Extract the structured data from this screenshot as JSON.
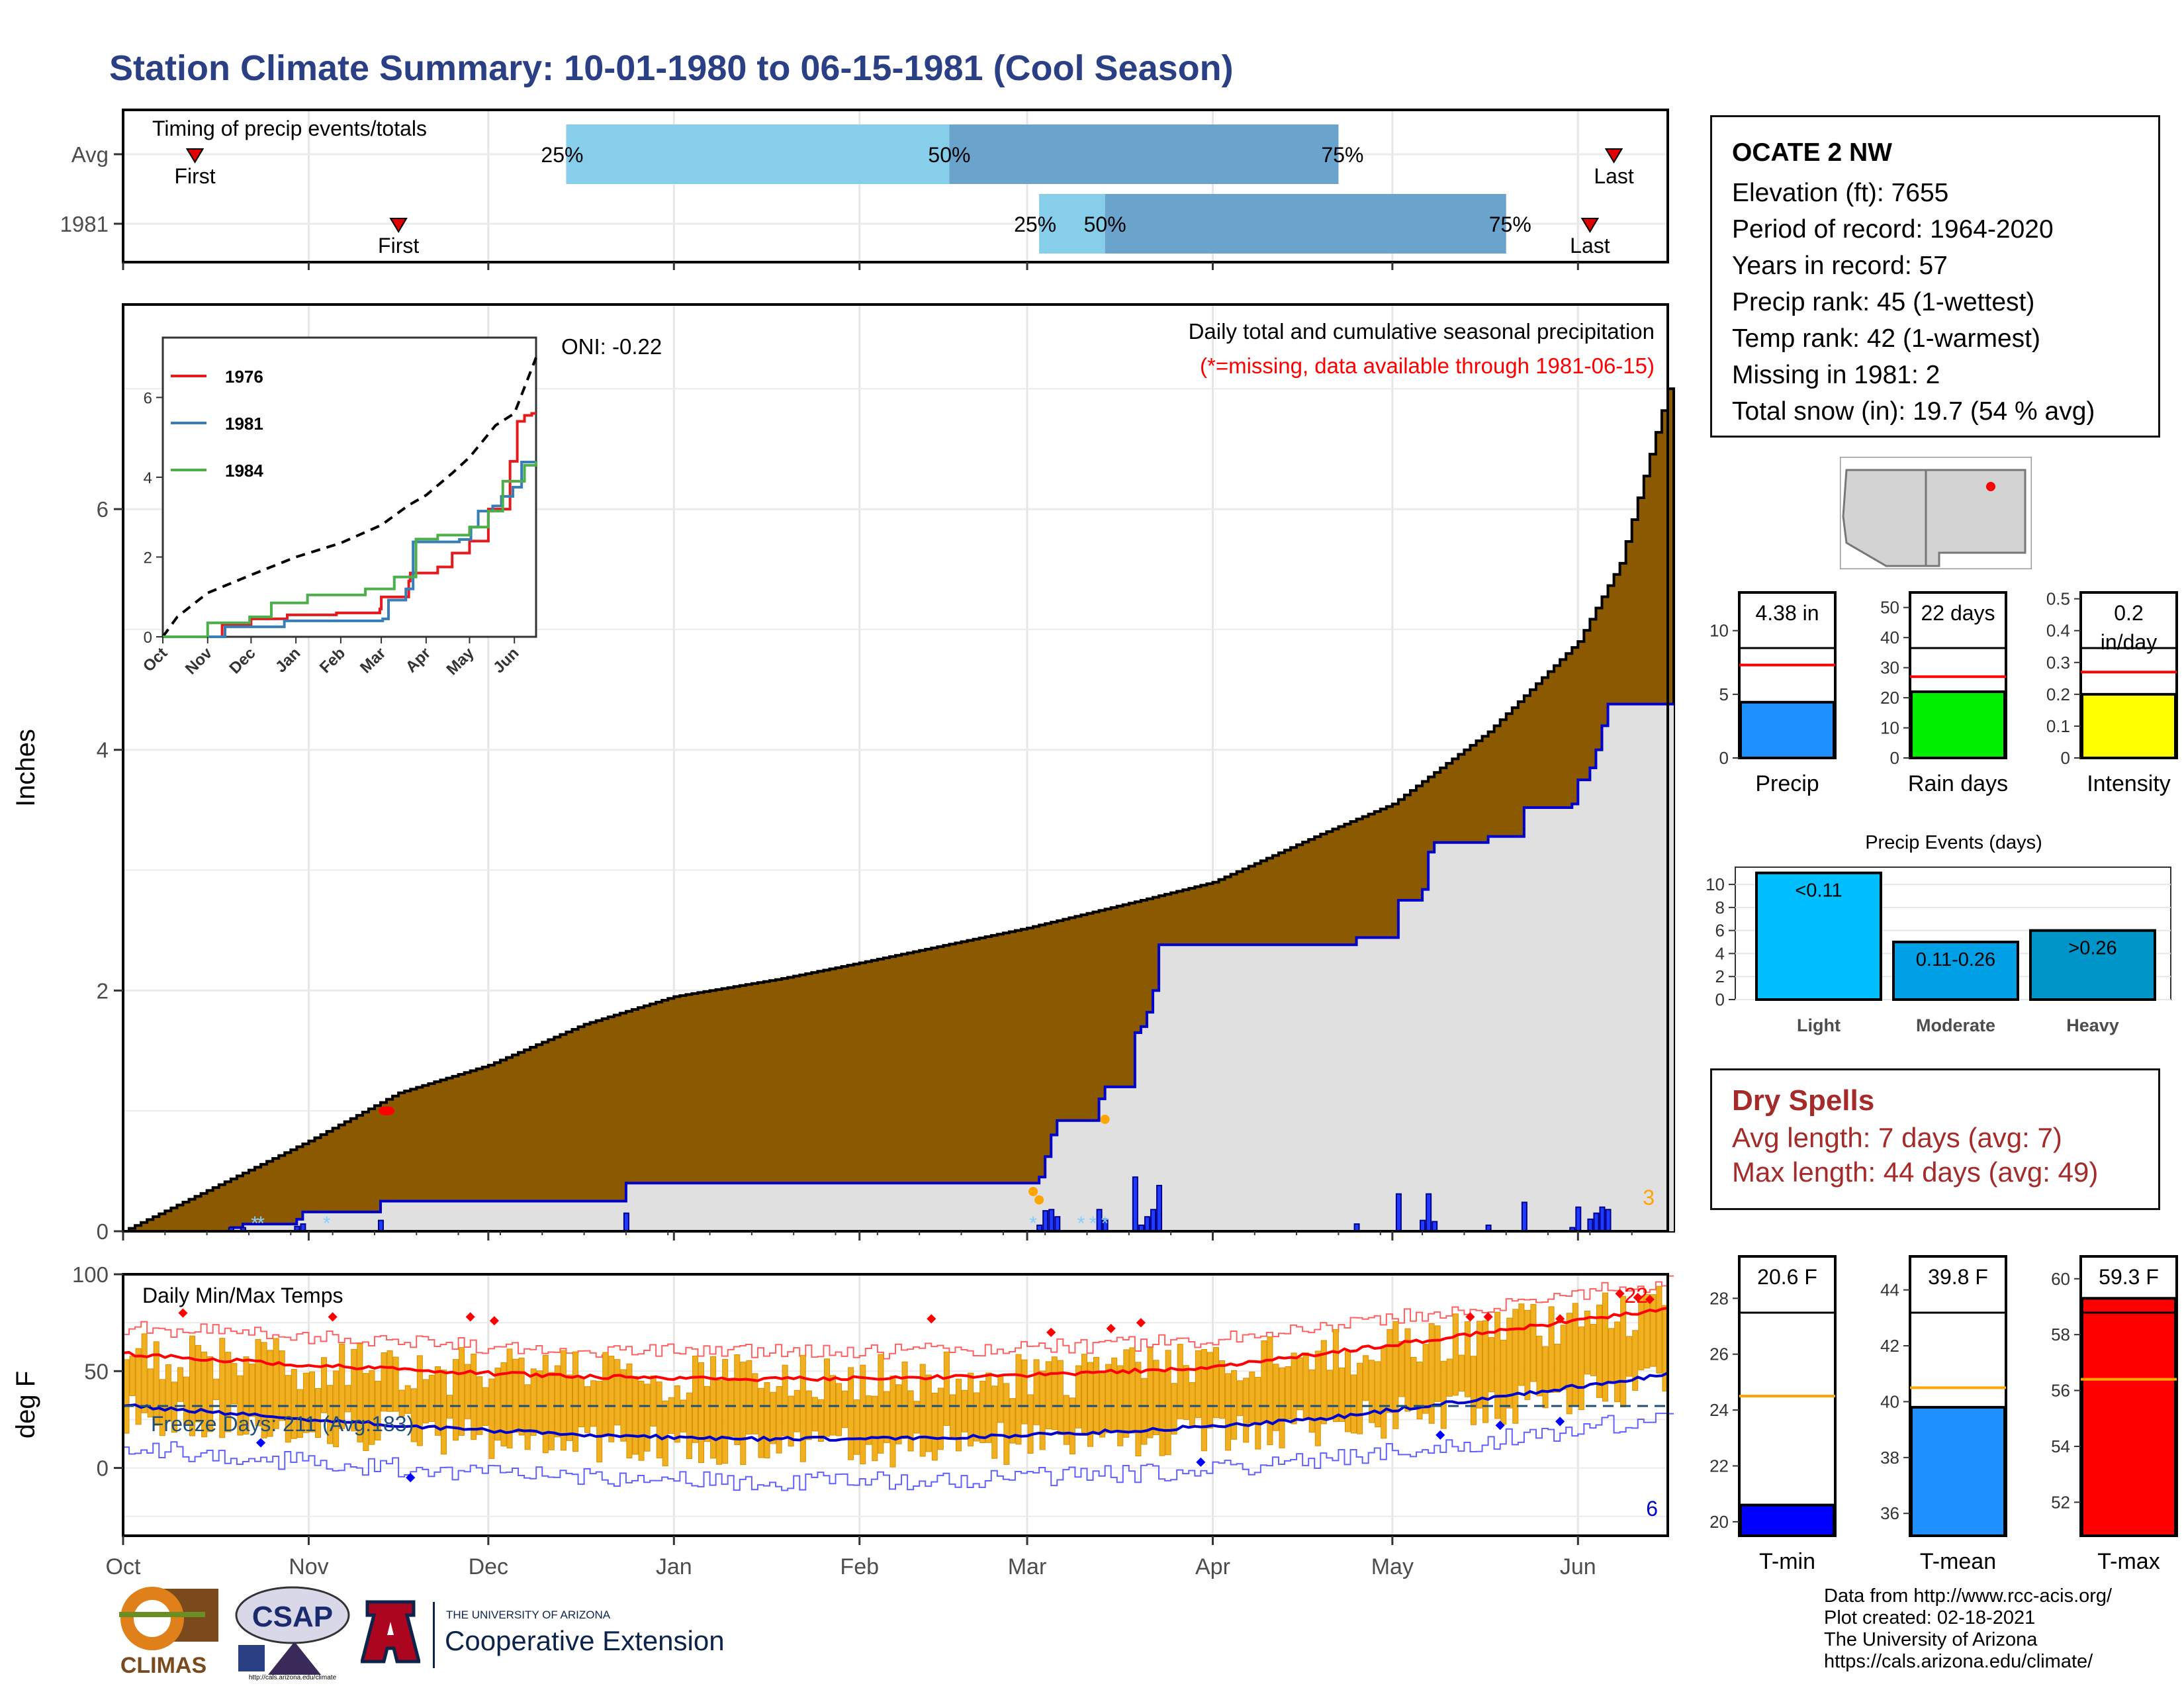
{
  "page": {
    "title": "Station Climate Summary: 10-01-1980 to 06-15-1981 (Cool Season)"
  },
  "timing": {
    "label": "Timing of precip events/totals",
    "rows": [
      {
        "label": "Avg",
        "first": "1980-10-13",
        "p25": "1980-12-14",
        "p50": "1981-02-16",
        "p75": "1981-04-22",
        "last": "1981-06-07"
      },
      {
        "label": "1981",
        "first": "1980-11-16",
        "p25": "1981-03-03",
        "p50": "1981-03-14",
        "p75": "1981-05-20",
        "last": "1981-06-03"
      }
    ],
    "markers": {
      "first": "First",
      "last": "Last",
      "p25": "25%",
      "p50": "50%",
      "p75": "75%"
    }
  },
  "precip": {
    "ylabel": "Inches",
    "ylim": [
      0,
      7.7
    ],
    "yticks": [
      0,
      2,
      4,
      6
    ],
    "oni": "ONI: -0.22",
    "note1": "Daily total and cumulative seasonal precipitation",
    "note2": "(*=missing, data available through 1981-06-15)",
    "corner_count": "3",
    "x_months": [
      "Oct",
      "Nov",
      "Dec",
      "Jan",
      "Feb",
      "Mar",
      "Apr",
      "May",
      "Jun"
    ]
  },
  "inset": {
    "yticks": [
      0,
      2,
      4,
      6
    ],
    "ylim": [
      0,
      7.5
    ],
    "x_months": [
      "Oct",
      "Nov",
      "Dec",
      "Jan",
      "Feb",
      "Mar",
      "Apr",
      "May",
      "Jun"
    ],
    "legend": [
      {
        "name": "1976",
        "color": "#e41a1c"
      },
      {
        "name": "1981",
        "color": "#377eb8"
      },
      {
        "name": "1984",
        "color": "#4daf4a"
      }
    ]
  },
  "temps": {
    "ylabel": "deg F",
    "label": "Daily Min/Max Temps",
    "freeze_text": "Freeze Days: 211 (Avg:183)",
    "ylim": [
      -35,
      100
    ],
    "yticks": [
      0,
      50,
      100
    ],
    "corner_top": "22",
    "corner_bottom": "6",
    "x_months": [
      "Oct",
      "Nov",
      "Dec",
      "Jan",
      "Feb",
      "Mar",
      "Apr",
      "May",
      "Jun"
    ]
  },
  "station": {
    "name": "OCATE 2 NW",
    "lines": [
      "Elevation (ft): 7655",
      "Period of record: 1964-2020",
      "Years in record: 57",
      "Precip rank: 45 (1-wettest)",
      "Temp rank: 42 (1-warmest)",
      "Missing in 1981: 2",
      "Total snow (in): 19.7 (54 % avg)"
    ]
  },
  "mini_bars": [
    {
      "label": "Precip",
      "value_text": "4.38 in",
      "value": 4.38,
      "avg": 7.3,
      "ylim": [
        0,
        13
      ],
      "ticks": [
        0,
        5,
        10
      ],
      "color": "#1e90ff"
    },
    {
      "label": "Rain days",
      "value_text": "22 days",
      "value": 22,
      "avg": 27,
      "ylim": [
        0,
        55
      ],
      "ticks": [
        0,
        10,
        20,
        30,
        40,
        50
      ],
      "color": "#00ee00"
    },
    {
      "label": "Intensity",
      "value_text": "0.2\nin/day",
      "value": 0.2,
      "avg": 0.27,
      "ylim": [
        0,
        0.52
      ],
      "ticks": [
        0.0,
        0.1,
        0.2,
        0.3,
        0.4,
        0.5
      ],
      "color": "#ffff00"
    }
  ],
  "events": {
    "title": "Precip Events (days)",
    "categories": [
      "Light",
      "Moderate",
      "Heavy"
    ],
    "bar_labels": [
      "<0.11",
      "0.11-0.26",
      ">0.26"
    ],
    "values": [
      11,
      5,
      6
    ],
    "yticks": [
      0,
      2,
      4,
      6,
      8,
      10
    ],
    "ylim": [
      0,
      11.5
    ],
    "colors": [
      "#00bfff",
      "#00a0e6",
      "#0095c8"
    ]
  },
  "dry_spells": {
    "title": "Dry Spells",
    "avg_length": "Avg length: 7 days (avg: 7)",
    "max_length": "Max length: 44 days (avg: 49)"
  },
  "temp_bars": [
    {
      "label": "T-min",
      "value_text": "20.6 F",
      "value": 20.6,
      "avg": 24.5,
      "ylim": [
        19.5,
        29.5
      ],
      "ticks": [
        20,
        22,
        24,
        26,
        28
      ],
      "color": "#0000ff"
    },
    {
      "label": "T-mean",
      "value_text": "39.8 F",
      "value": 39.8,
      "avg": 40.5,
      "ylim": [
        35.2,
        45.2
      ],
      "ticks": [
        36,
        38,
        40,
        42,
        44
      ],
      "color": "#1e90ff"
    },
    {
      "label": "T-max",
      "value_text": "59.3 F",
      "value": 59.3,
      "avg": 56.4,
      "ylim": [
        50.8,
        60.8
      ],
      "ticks": [
        52,
        54,
        56,
        58,
        60
      ],
      "color": "#ff0000"
    }
  ],
  "credits": {
    "lines": [
      "Data from http://www.rcc-acis.org/",
      "Plot created: 02-18-2021",
      "The University of Arizona",
      "https://cals.arizona.edu/climate/"
    ]
  },
  "logos": {
    "climas": "CLIMAS",
    "csap": "CSAP",
    "csap_url": "http://cals.arizona.edu/climate",
    "ua_small": "THE UNIVERSITY OF ARIZONA",
    "ua_big": "Cooperative Extension"
  },
  "colors": {
    "title": "#2a3f84",
    "cumulative_avg": "#8b5a00",
    "cumulative_obs": "#0000cd",
    "season_bg": "#e0e0e0",
    "temp_bar": "#f0b020",
    "dry_spells": "#a52a2a"
  }
}
